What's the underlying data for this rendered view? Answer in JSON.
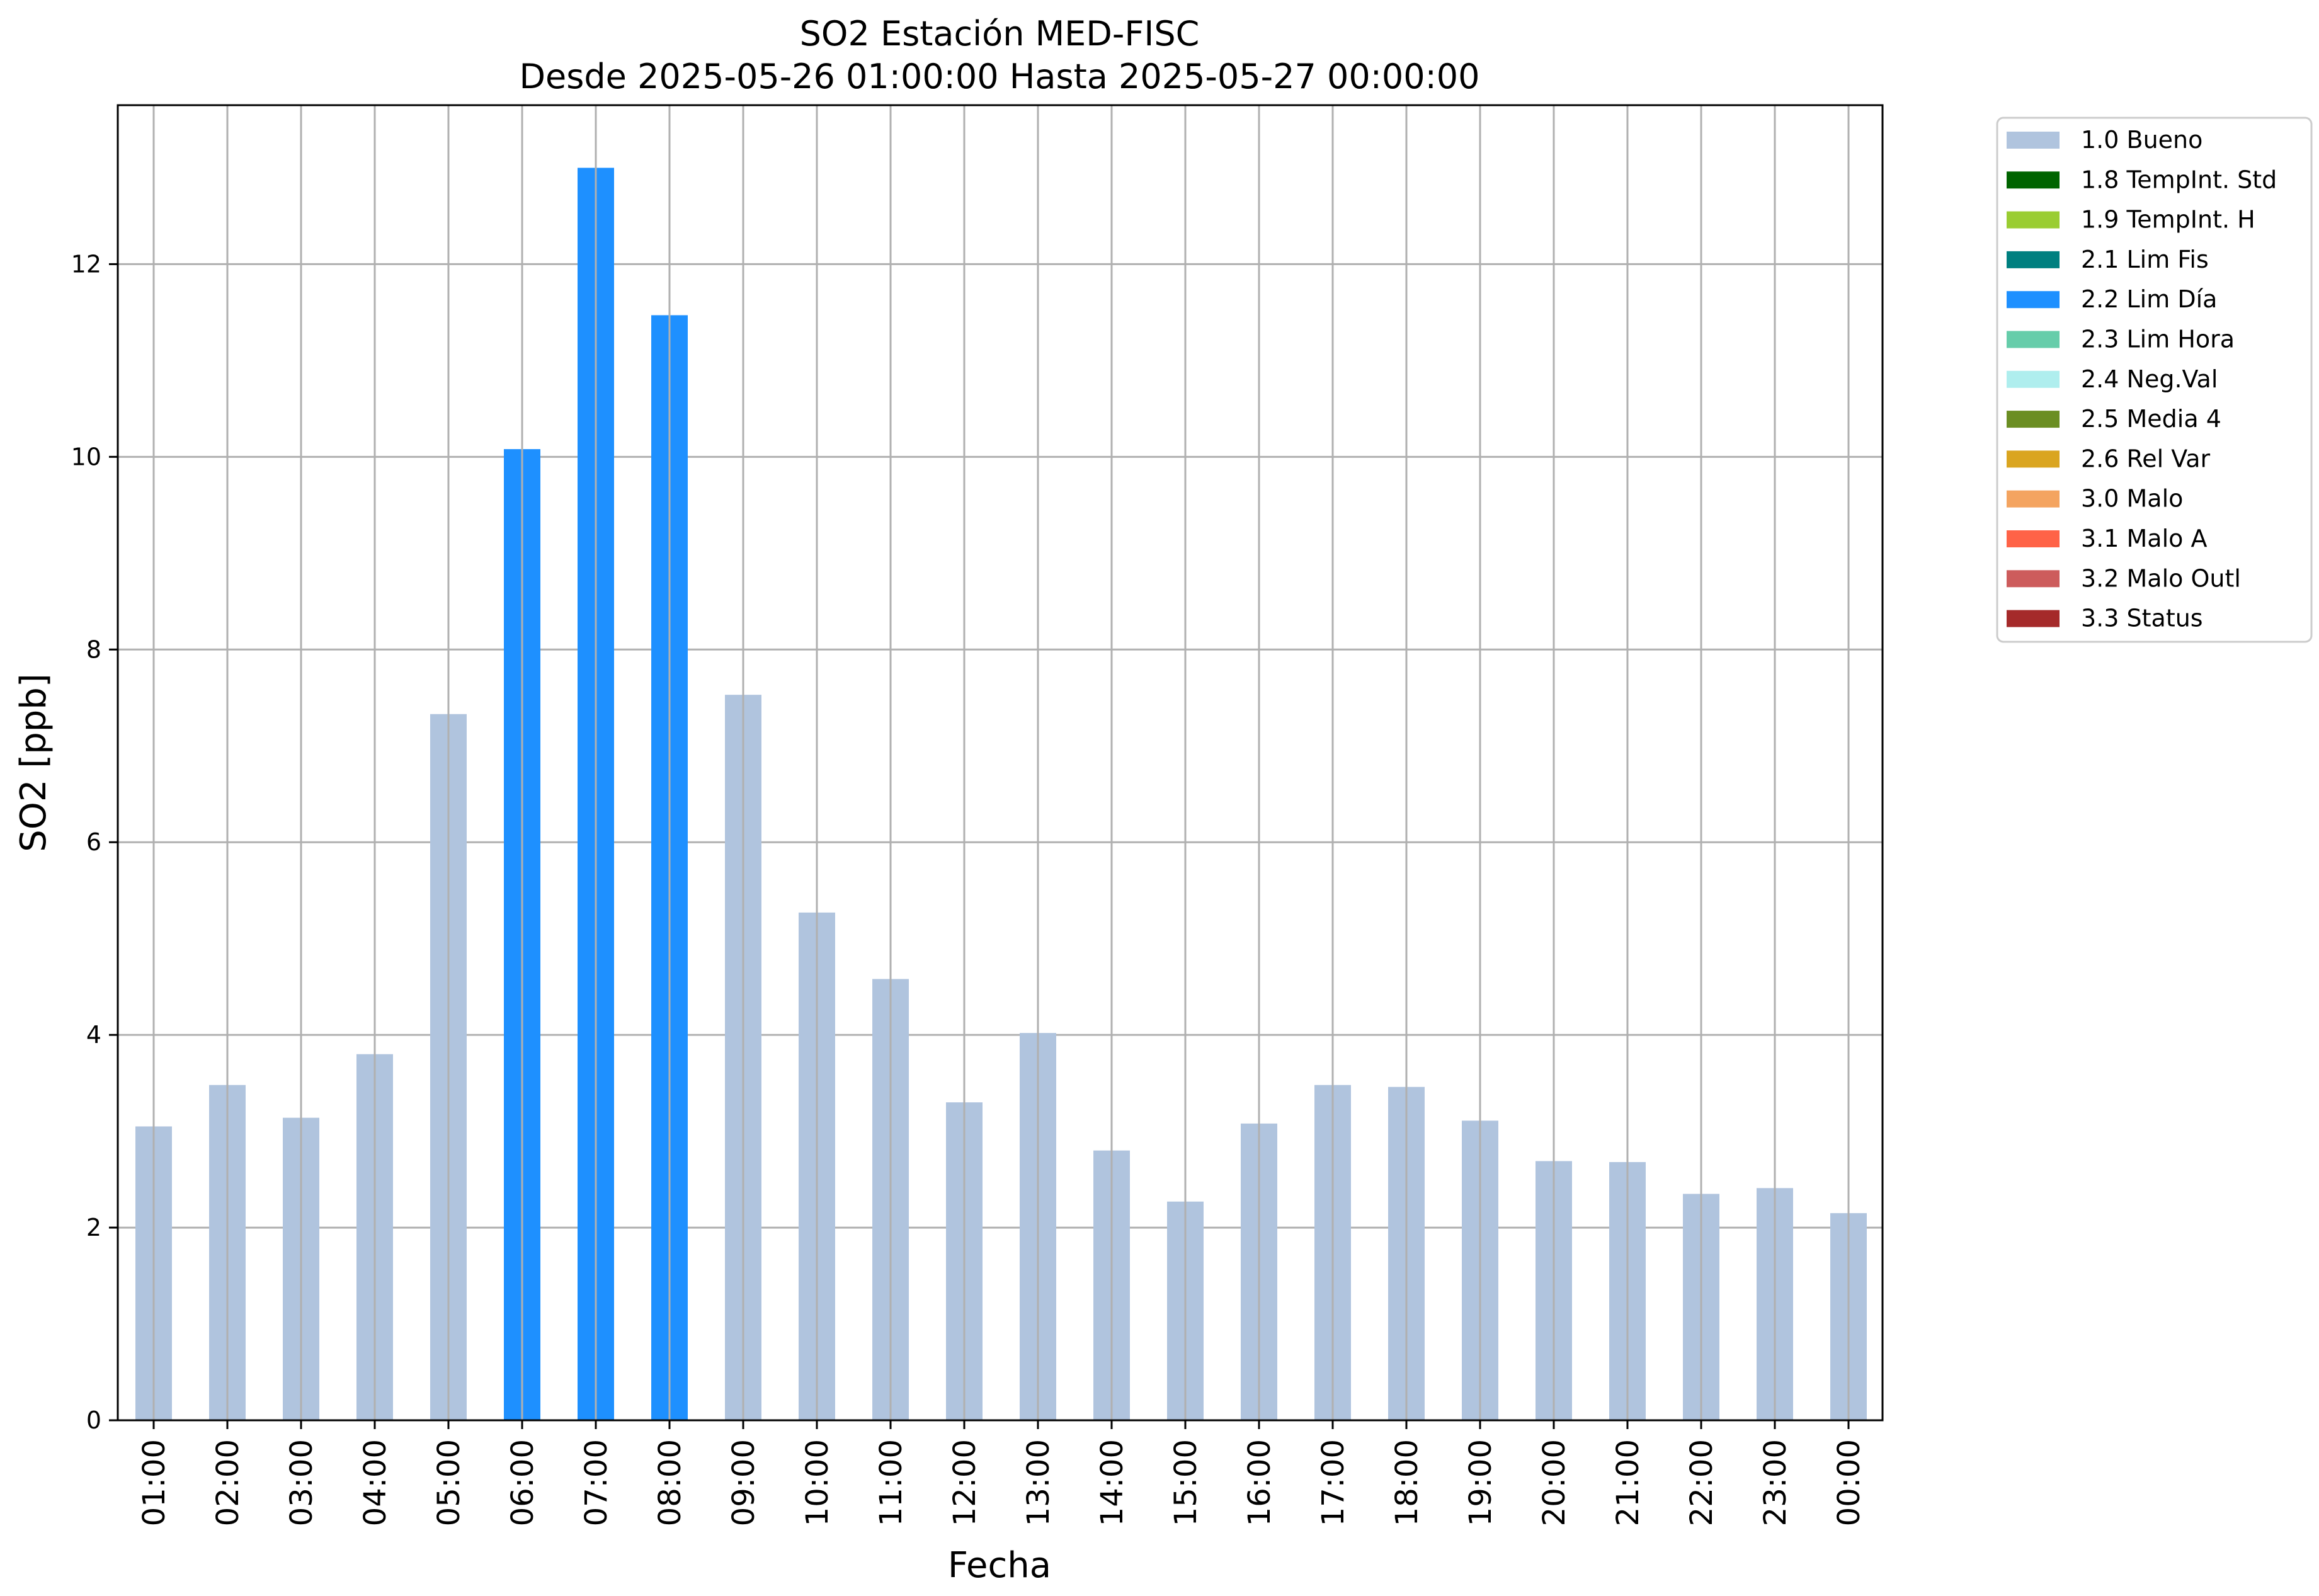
{
  "chart_data": {
    "type": "bar",
    "title": "SO2 Estación MED-FISC",
    "subtitle": "Desde 2025-05-26 01:00:00 Hasta 2025-05-27 00:00:00",
    "xlabel": "Fecha",
    "ylabel": "SO2 [ppb]",
    "ylim": [
      0,
      13.65
    ],
    "yticks": [
      "0",
      "2",
      "4",
      "6",
      "8",
      "10",
      "12"
    ],
    "grid": true,
    "legend_position": "outside-top-right",
    "categories": [
      "01:00",
      "02:00",
      "03:00",
      "04:00",
      "05:00",
      "06:00",
      "07:00",
      "08:00",
      "09:00",
      "10:00",
      "11:00",
      "12:00",
      "13:00",
      "14:00",
      "15:00",
      "16:00",
      "17:00",
      "18:00",
      "19:00",
      "20:00",
      "21:00",
      "22:00",
      "23:00",
      "00:00"
    ],
    "values": [
      3.05,
      3.48,
      3.14,
      3.8,
      7.33,
      10.08,
      13.0,
      11.47,
      7.53,
      5.27,
      4.58,
      3.3,
      4.02,
      2.8,
      2.27,
      3.08,
      3.48,
      3.46,
      3.11,
      2.69,
      2.68,
      2.35,
      2.41,
      2.15
    ],
    "flags": [
      "1.0 Bueno",
      "1.0 Bueno",
      "1.0 Bueno",
      "1.0 Bueno",
      "1.0 Bueno",
      "2.2 Lim Día",
      "2.2 Lim Día",
      "2.2 Lim Día",
      "1.0 Bueno",
      "1.0 Bueno",
      "1.0 Bueno",
      "1.0 Bueno",
      "1.0 Bueno",
      "1.0 Bueno",
      "1.0 Bueno",
      "1.0 Bueno",
      "1.0 Bueno",
      "1.0 Bueno",
      "1.0 Bueno",
      "1.0 Bueno",
      "1.0 Bueno",
      "1.0 Bueno",
      "1.0 Bueno",
      "1.0 Bueno"
    ],
    "legend": [
      {
        "label": "1.0 Bueno",
        "color": "#b0c4de"
      },
      {
        "label": "1.8 TempInt. Std",
        "color": "#006400"
      },
      {
        "label": "1.9 TempInt. H",
        "color": "#9acd32"
      },
      {
        "label": "2.1 Lim Fis",
        "color": "#008080"
      },
      {
        "label": "2.2 Lim Día",
        "color": "#1e90ff"
      },
      {
        "label": "2.3 Lim Hora",
        "color": "#66cdaa"
      },
      {
        "label": "2.4 Neg.Val",
        "color": "#afeeee"
      },
      {
        "label": "2.5 Media 4",
        "color": "#6b8e23"
      },
      {
        "label": "2.6 Rel Var",
        "color": "#daa520"
      },
      {
        "label": "3.0 Malo",
        "color": "#f4a460"
      },
      {
        "label": "3.1 Malo A",
        "color": "#ff6347"
      },
      {
        "label": "3.2 Malo Outl",
        "color": "#cd5c5c"
      },
      {
        "label": "3.3 Status",
        "color": "#a52a2a"
      }
    ]
  }
}
